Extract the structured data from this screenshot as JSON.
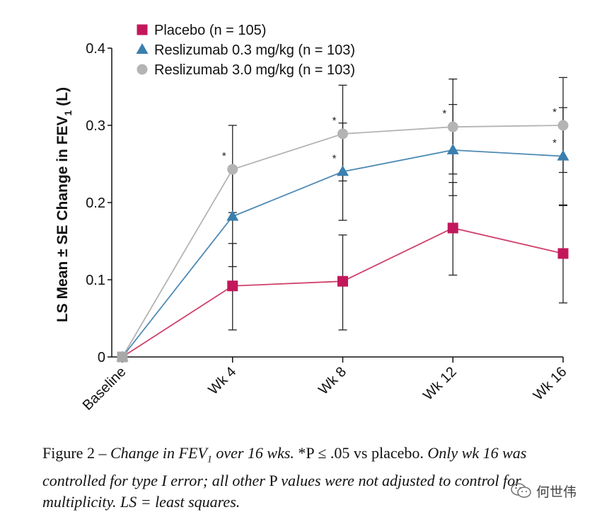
{
  "chart_data": {
    "type": "line",
    "title": "",
    "ylabel_main": "LS Mean ± SE Change in FEV",
    "ylabel_sub": "1",
    "ylabel_unit": " (L)",
    "xlabel": "",
    "ylim": [
      0,
      0.4
    ],
    "yticks": [
      "0",
      "0.1",
      "0.2",
      "0.3",
      "0.4"
    ],
    "categories": [
      "Baseline",
      "Wk 4",
      "Wk 8",
      "Wk 12",
      "Wk 16"
    ],
    "legend_position": "top-left",
    "series": [
      {
        "name": "Placebo (n = 105)",
        "marker": "square",
        "color": "#c2185b",
        "line_color": "#d0406a",
        "values": [
          0,
          0.092,
          0.098,
          0.167,
          0.134
        ],
        "err_low": [
          0,
          0.035,
          0.035,
          0.106,
          0.07
        ],
        "err_high": [
          0,
          0.147,
          0.158,
          0.226,
          0.196
        ],
        "significant": [
          false,
          false,
          false,
          false,
          false
        ]
      },
      {
        "name": "Reslizumab 0.3 mg/kg (n = 103)",
        "marker": "triangle",
        "color": "#3a7fae",
        "line_color": "#4d8ab5",
        "values": [
          0,
          0.182,
          0.24,
          0.268,
          0.26
        ],
        "err_low": [
          0,
          0.117,
          0.177,
          0.209,
          0.197
        ],
        "err_high": [
          0,
          0.247,
          0.303,
          0.327,
          0.323
        ],
        "significant": [
          false,
          false,
          true,
          false,
          true
        ]
      },
      {
        "name": "Reslizumab 3.0 mg/kg (n = 103)",
        "marker": "circle",
        "color": "#b4b4b4",
        "line_color": "#b4b4b4",
        "values": [
          0,
          0.243,
          0.289,
          0.298,
          0.3
        ],
        "err_low": [
          0,
          0.187,
          0.228,
          0.237,
          0.239
        ],
        "err_high": [
          0,
          0.3,
          0.352,
          0.36,
          0.362
        ],
        "significant": [
          false,
          true,
          true,
          true,
          true
        ]
      }
    ],
    "annotation_symbol": "*"
  },
  "caption": {
    "prefix": "Figure 2 – ",
    "italic1": "Change in FEV",
    "sub": "1",
    "italic2": " over 16 wks.",
    "normal1": " *P ≤ .05 vs placebo. ",
    "italic3": "Only wk 16 was controlled for type I error; all other",
    "normal2": " P ",
    "italic4": "values were not adjusted to control for multiplicity. LS = least squares."
  },
  "watermark": {
    "text": "何世伟",
    "icon": "wechat-icon"
  }
}
